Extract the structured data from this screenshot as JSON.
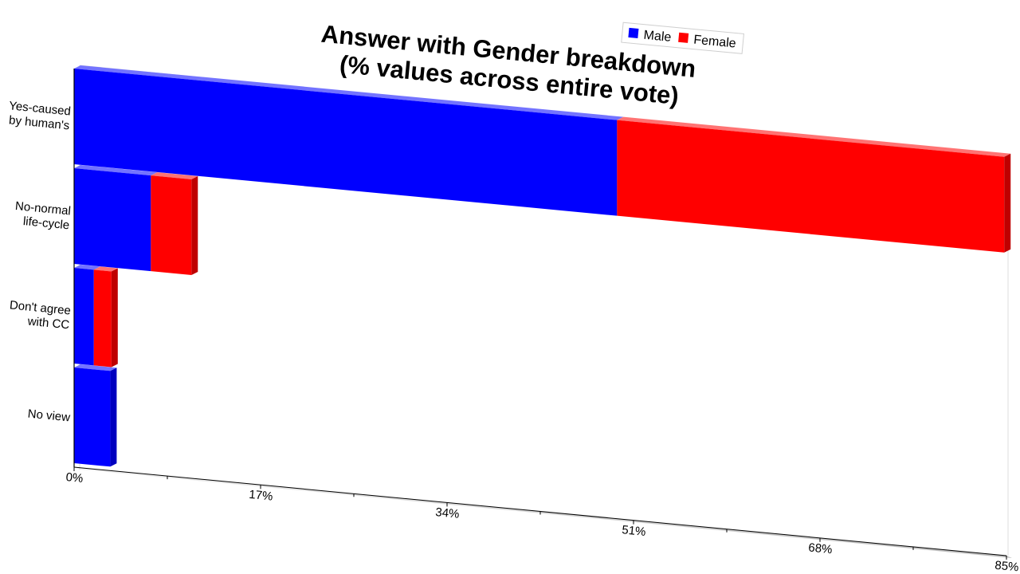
{
  "chart_data": {
    "type": "bar",
    "orientation": "horizontal",
    "stacked": true,
    "three_d": true,
    "title": "Answer with Gender breakdown (% values across entire vote)",
    "title_lines": [
      "Answer with Gender breakdown",
      "(% values across entire vote)"
    ],
    "categories": [
      {
        "lines": [
          "Yes-caused",
          "by human's"
        ]
      },
      {
        "lines": [
          "No-normal",
          "life-cycle"
        ]
      },
      {
        "lines": [
          "Don't agree",
          "with CC"
        ]
      },
      {
        "lines": [
          "No view"
        ]
      }
    ],
    "series": [
      {
        "name": "Male",
        "color": "#0000ff",
        "values": [
          49.5,
          7.0,
          1.8,
          3.3
        ]
      },
      {
        "name": "Female",
        "color": "#ff0000",
        "values": [
          35.3,
          3.7,
          1.6,
          0.0
        ]
      }
    ],
    "xlim": [
      0,
      85
    ],
    "x_ticks": [
      "0%",
      "17%",
      "34%",
      "51%",
      "68%",
      "85%"
    ],
    "legend": {
      "position": "top-right",
      "entries": [
        "Male",
        "Female"
      ]
    },
    "grid": false
  }
}
